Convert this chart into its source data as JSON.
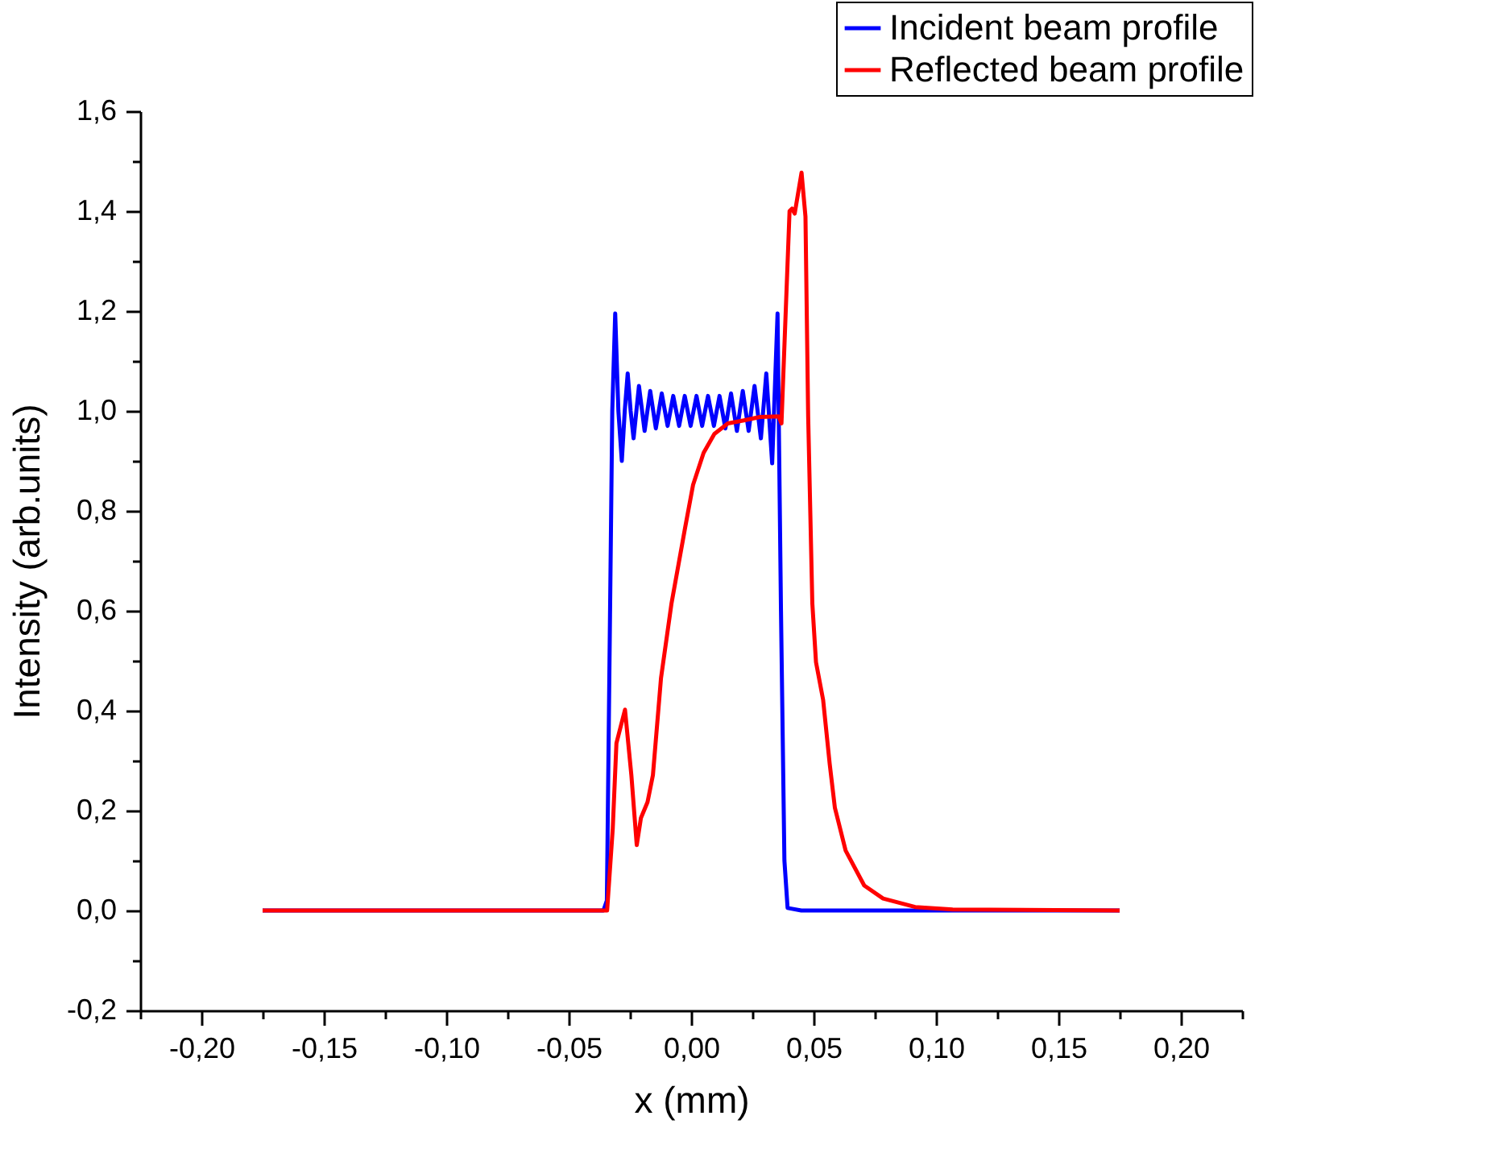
{
  "chart_data": {
    "type": "line",
    "xlabel": "x (mm)",
    "ylabel": "Intensity (arb.units)",
    "xlim": [
      -0.225,
      0.225
    ],
    "ylim": [
      -0.2,
      1.6
    ],
    "xticks": [
      {
        "value": -0.225,
        "label": null
      },
      {
        "value": -0.2,
        "label": "-0,20"
      },
      {
        "value": -0.175,
        "label": null
      },
      {
        "value": -0.15,
        "label": "-0,15"
      },
      {
        "value": -0.125,
        "label": null
      },
      {
        "value": -0.1,
        "label": "-0,10"
      },
      {
        "value": -0.075,
        "label": null
      },
      {
        "value": -0.05,
        "label": "-0,05"
      },
      {
        "value": -0.025,
        "label": null
      },
      {
        "value": 0,
        "label": "0,00"
      },
      {
        "value": 0.025,
        "label": null
      },
      {
        "value": 0.05,
        "label": "0,05"
      },
      {
        "value": 0.075,
        "label": null
      },
      {
        "value": 0.1,
        "label": "0,10"
      },
      {
        "value": 0.125,
        "label": null
      },
      {
        "value": 0.15,
        "label": "0,15"
      },
      {
        "value": 0.175,
        "label": null
      },
      {
        "value": 0.2,
        "label": "0,20"
      },
      {
        "value": 0.225,
        "label": null
      }
    ],
    "yticks": [
      {
        "value": -0.2,
        "label": "-0,2"
      },
      {
        "value": -0.1,
        "label": null
      },
      {
        "value": 0,
        "label": "0,0"
      },
      {
        "value": 0.1,
        "label": null
      },
      {
        "value": 0.2,
        "label": "0,2"
      },
      {
        "value": 0.3,
        "label": null
      },
      {
        "value": 0.4,
        "label": "0,4"
      },
      {
        "value": 0.5,
        "label": null
      },
      {
        "value": 0.6,
        "label": "0,6"
      },
      {
        "value": 0.7,
        "label": null
      },
      {
        "value": 0.8,
        "label": "0,8"
      },
      {
        "value": 0.9,
        "label": null
      },
      {
        "value": 1.0,
        "label": "1,0"
      },
      {
        "value": 1.1,
        "label": null
      },
      {
        "value": 1.2,
        "label": "1,2"
      },
      {
        "value": 1.3,
        "label": null
      },
      {
        "value": 1.4,
        "label": "1,4"
      },
      {
        "value": 1.5,
        "label": null
      },
      {
        "value": 1.6,
        "label": "1,6"
      }
    ],
    "grid": false,
    "legend": "top right",
    "marker": "none",
    "line_style": "solid",
    "series": [
      {
        "name": "Incident beam profile",
        "color": "#0000ff",
        "x": [
          -0.175,
          -0.0358,
          -0.0344,
          -0.0331,
          -0.0322,
          -0.031,
          -0.0297,
          -0.0283,
          -0.0271,
          -0.0259,
          -0.0247,
          -0.0235,
          -0.0213,
          -0.019,
          -0.0167,
          -0.0144,
          -0.012,
          -0.0096,
          -0.0073,
          -0.0049,
          -0.0026,
          -0.0002,
          0.0022,
          0.0045,
          0.0069,
          0.0093,
          0.0116,
          0.014,
          0.0163,
          0.0187,
          0.0211,
          0.0235,
          0.0259,
          0.0285,
          0.0307,
          0.0331,
          0.0353,
          0.0367,
          0.0381,
          0.0394,
          0.045,
          0.175
        ],
        "values": [
          0,
          0,
          0.02,
          0.6,
          1.0,
          1.195,
          1.0,
          0.9,
          1.0,
          1.075,
          1.0,
          0.945,
          1.05,
          0.96,
          1.04,
          0.965,
          1.035,
          0.97,
          1.03,
          0.97,
          1.03,
          0.97,
          1.03,
          0.97,
          1.03,
          0.97,
          1.03,
          0.965,
          1.035,
          0.96,
          1.04,
          0.96,
          1.05,
          0.945,
          1.075,
          0.895,
          1.195,
          0.6,
          0.1,
          0.005,
          0,
          0
        ]
      },
      {
        "name": "Reflected beam profile",
        "color": "#ff0000",
        "x": [
          -0.175,
          -0.0343,
          -0.032,
          -0.0305,
          -0.027,
          -0.0244,
          -0.0222,
          -0.0205,
          -0.0178,
          -0.0156,
          -0.0123,
          -0.008,
          -0.0025,
          0.0008,
          0.0051,
          0.0095,
          0.015,
          0.0215,
          0.0281,
          0.0358,
          0.0369,
          0.0402,
          0.0412,
          0.0423,
          0.0451,
          0.0467,
          0.0478,
          0.0495,
          0.051,
          0.0539,
          0.0566,
          0.0587,
          0.0631,
          0.0707,
          0.0784,
          0.0915,
          0.1068,
          0.175
        ],
        "values": [
          0,
          0,
          0.164,
          0.335,
          0.402,
          0.271,
          0.131,
          0.185,
          0.217,
          0.271,
          0.465,
          0.615,
          0.765,
          0.852,
          0.916,
          0.954,
          0.975,
          0.981,
          0.988,
          0.989,
          0.975,
          1.4,
          1.405,
          1.395,
          1.477,
          1.389,
          0.99,
          0.615,
          0.497,
          0.422,
          0.293,
          0.206,
          0.12,
          0.05,
          0.024,
          0.007,
          0.002,
          0
        ]
      }
    ]
  }
}
